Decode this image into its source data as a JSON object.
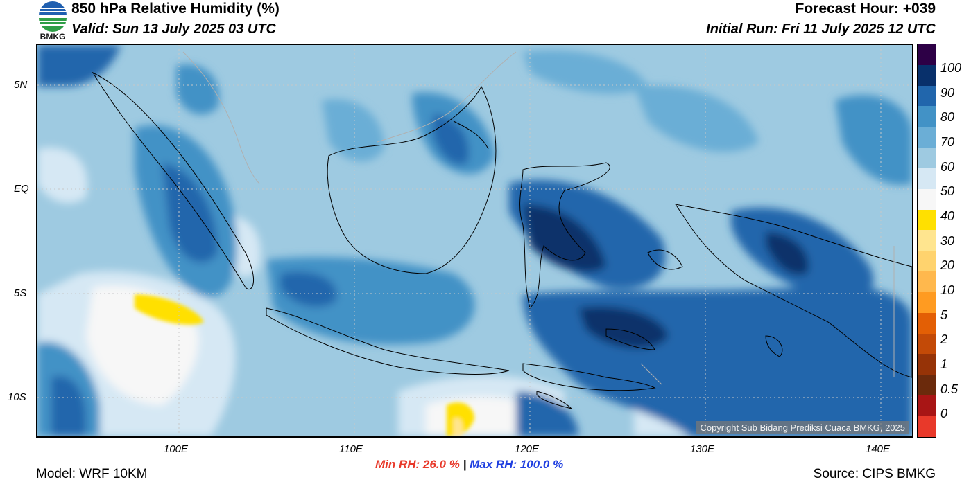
{
  "header": {
    "title": "850 hPa Relative Humidity (%)",
    "valid": "Valid: Sun 13 July 2025 03 UTC",
    "forecast_hour": "Forecast Hour: +039",
    "initial_run": "Initial Run: Fri 11 July 2025 12 UTC"
  },
  "logo": {
    "text": "BMKG",
    "icon": "bmkg-logo"
  },
  "map": {
    "lat_ticks": [
      "5N",
      "EQ",
      "5S",
      "10S"
    ],
    "lon_ticks": [
      "100E",
      "110E",
      "120E",
      "130E",
      "140E"
    ],
    "copyright": "Copyright Sub Bidang Prediksi Cuaca BMKG, 2025"
  },
  "colorbar": {
    "labels": [
      "100",
      "90",
      "80",
      "70",
      "60",
      "50",
      "40",
      "30",
      "20",
      "10",
      "5",
      "2",
      "1",
      "0.5",
      "0"
    ],
    "colors": [
      "#2d0046",
      "#08306b",
      "#2166ac",
      "#4292c6",
      "#6baed6",
      "#9ecae1",
      "#d6e8f4",
      "#f7f7f7",
      "#ffe000",
      "#ffe58f",
      "#ffd36e",
      "#ffb84d",
      "#ff9b21",
      "#e35f05",
      "#c34a07",
      "#963307",
      "#6b2a0c",
      "#a81515",
      "#e8392a"
    ]
  },
  "stats": {
    "min": "Min RH:  26.0 %",
    "separator": "|",
    "max": "Max RH: 100.0 %"
  },
  "footer": {
    "model": "Model: WRF 10KM",
    "source": "Source: CIPS BMKG"
  }
}
